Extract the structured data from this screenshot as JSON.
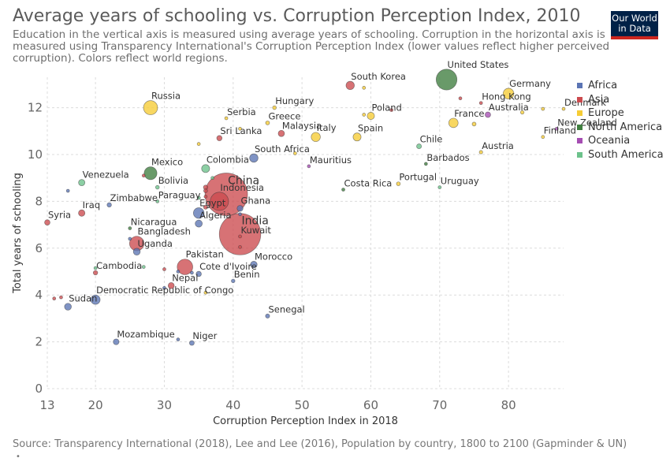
{
  "header": {
    "title": "Average years of schooling vs. Corruption Perception Index, 2010",
    "subtitle": "Education in the vertical axis is measured using average years of schooling. Corruption in the horizontal axis is measured using Transparency International's Corruption Perception Index (lower values reflect higher perceived corruption). Colors reflect world regions."
  },
  "logo": {
    "line1": "Our World",
    "line2": "in Data"
  },
  "footer": {
    "source": "Source: Transparency International (2018), Lee and Lee (2016), Population by country, 1800 to 2100 (Gapminder & UN)",
    "note": "•"
  },
  "colors": {
    "Africa": "#5b74b4",
    "Asia": "#cc4a4e",
    "Europe": "#f6cc35",
    "North America": "#3f7e3f",
    "Oceania": "#a54db2",
    "South America": "#6cc28b"
  },
  "chart_data": {
    "type": "scatter",
    "title": "Average years of schooling vs. Corruption Perception Index, 2010",
    "xlabel": "Corruption Perception Index in 2018",
    "ylabel": "Total years of schooling",
    "xlim": [
      13,
      88
    ],
    "ylim": [
      0,
      13.3
    ],
    "x_ticks": [
      13,
      20,
      30,
      40,
      50,
      60,
      70,
      80
    ],
    "y_ticks": [
      0,
      2,
      4,
      6,
      8,
      10,
      12
    ],
    "grid": true,
    "legend_position": "right",
    "legend": [
      "Africa",
      "Asia",
      "Europe",
      "North America",
      "Oceania",
      "South America"
    ],
    "points": [
      {
        "name": "South Korea",
        "region": "Asia",
        "x": 57,
        "y": 12.95,
        "pop": 50
      },
      {
        "name": "United States",
        "region": "North America",
        "x": 71,
        "y": 13.2,
        "pop": 310
      },
      {
        "name": "Germany",
        "region": "Europe",
        "x": 80,
        "y": 12.6,
        "pop": 82
      },
      {
        "name": "Russia",
        "region": "Europe",
        "x": 28,
        "y": 12.0,
        "pop": 143
      },
      {
        "name": "Hungary",
        "region": "Europe",
        "x": 46,
        "y": 12.0,
        "pop": 10
      },
      {
        "name": "Hong Kong",
        "region": "Asia",
        "x": 76,
        "y": 12.2,
        "pop": 7
      },
      {
        "name": "Denmark",
        "region": "Europe",
        "x": 88,
        "y": 11.95,
        "pop": 5.5
      },
      {
        "name": "Poland",
        "region": "Europe",
        "x": 60,
        "y": 11.65,
        "pop": 38
      },
      {
        "name": "Australia",
        "region": "Oceania",
        "x": 77,
        "y": 11.7,
        "pop": 22
      },
      {
        "name": "Serbia",
        "region": "Europe",
        "x": 39,
        "y": 11.55,
        "pop": 7
      },
      {
        "name": "Greece",
        "region": "Europe",
        "x": 45,
        "y": 11.35,
        "pop": 11
      },
      {
        "name": "France",
        "region": "Europe",
        "x": 72,
        "y": 11.35,
        "pop": 63
      },
      {
        "name": "Sri Lanka",
        "region": "Asia",
        "x": 38,
        "y": 10.7,
        "pop": 20
      },
      {
        "name": "Malaysia",
        "region": "Asia",
        "x": 47,
        "y": 10.9,
        "pop": 28
      },
      {
        "name": "Italy",
        "region": "Europe",
        "x": 52,
        "y": 10.75,
        "pop": 60
      },
      {
        "name": "Spain",
        "region": "Europe",
        "x": 58,
        "y": 10.75,
        "pop": 46
      },
      {
        "name": "New Zealand",
        "region": "Oceania",
        "x": 87,
        "y": 11.1,
        "pop": 4.4
      },
      {
        "name": "Finland",
        "region": "Europe",
        "x": 85,
        "y": 10.75,
        "pop": 5.4
      },
      {
        "name": "Chile",
        "region": "South America",
        "x": 67,
        "y": 10.35,
        "pop": 17
      },
      {
        "name": "Austria",
        "region": "Europe",
        "x": 76,
        "y": 10.1,
        "pop": 8.4
      },
      {
        "name": "South Africa",
        "region": "Africa",
        "x": 43,
        "y": 9.85,
        "pop": 51
      },
      {
        "name": "Barbados",
        "region": "North America",
        "x": 68,
        "y": 9.6,
        "pop": 0.3
      },
      {
        "name": "Mauritius",
        "region": "Oceania",
        "x": 51,
        "y": 9.5,
        "pop": 1.3
      },
      {
        "name": "Colombia",
        "region": "South America",
        "x": 36,
        "y": 9.4,
        "pop": 46
      },
      {
        "name": "Mexico",
        "region": "North America",
        "x": 28,
        "y": 9.2,
        "pop": 117
      },
      {
        "name": "Venezuela",
        "region": "South America",
        "x": 18,
        "y": 8.8,
        "pop": 29
      },
      {
        "name": "Bolivia",
        "region": "South America",
        "x": 29,
        "y": 8.6,
        "pop": 10
      },
      {
        "name": "China",
        "region": "Asia",
        "x": 39,
        "y": 8.3,
        "pop": 1340
      },
      {
        "name": "Portugal",
        "region": "Europe",
        "x": 64,
        "y": 8.75,
        "pop": 10.6
      },
      {
        "name": "Costa Rica",
        "region": "North America",
        "x": 56,
        "y": 8.5,
        "pop": 4.6
      },
      {
        "name": "Uruguay",
        "region": "South America",
        "x": 70,
        "y": 8.6,
        "pop": 3.4
      },
      {
        "name": "Indonesia",
        "region": "Asia",
        "x": 38,
        "y": 8.0,
        "pop": 240
      },
      {
        "name": "Paraguay",
        "region": "South America",
        "x": 29,
        "y": 8.0,
        "pop": 6.4
      },
      {
        "name": "Zimbabwe",
        "region": "Africa",
        "x": 22,
        "y": 7.85,
        "pop": 14
      },
      {
        "name": "Egypt",
        "region": "Africa",
        "x": 35,
        "y": 7.5,
        "pop": 82
      },
      {
        "name": "Ghana",
        "region": "Africa",
        "x": 41,
        "y": 7.7,
        "pop": 25
      },
      {
        "name": "Iraq",
        "region": "Asia",
        "x": 18,
        "y": 7.5,
        "pop": 30
      },
      {
        "name": "India",
        "region": "Asia",
        "x": 41,
        "y": 6.6,
        "pop": 1230
      },
      {
        "name": "Syria",
        "region": "Asia",
        "x": 13,
        "y": 7.1,
        "pop": 21
      },
      {
        "name": "Algeria",
        "region": "Africa",
        "x": 35,
        "y": 7.05,
        "pop": 36
      },
      {
        "name": "Nicaragua",
        "region": "North America",
        "x": 25,
        "y": 6.85,
        "pop": 5.8
      },
      {
        "name": "Bangladesh",
        "region": "Asia",
        "x": 26,
        "y": 6.2,
        "pop": 150
      },
      {
        "name": "Uganda",
        "region": "Africa",
        "x": 26,
        "y": 5.85,
        "pop": 34
      },
      {
        "name": "Kuwait",
        "region": "Asia",
        "x": 41,
        "y": 6.5,
        "pop": 3
      },
      {
        "name": "Pakistan",
        "region": "Asia",
        "x": 33,
        "y": 5.2,
        "pop": 174
      },
      {
        "name": "Morocco",
        "region": "Africa",
        "x": 43,
        "y": 5.3,
        "pop": 32
      },
      {
        "name": "Cambodia",
        "region": "Asia",
        "x": 20,
        "y": 4.95,
        "pop": 14
      },
      {
        "name": "Cote d'Ivoire",
        "region": "Africa",
        "x": 35,
        "y": 4.9,
        "pop": 20
      },
      {
        "name": "Benin",
        "region": "Africa",
        "x": 40,
        "y": 4.6,
        "pop": 9.5
      },
      {
        "name": "Nepal",
        "region": "Asia",
        "x": 31,
        "y": 4.4,
        "pop": 27
      },
      {
        "name": "Democratic Republic of Congo",
        "region": "Africa",
        "x": 20,
        "y": 3.8,
        "pop": 62
      },
      {
        "name": "Sudan",
        "region": "Africa",
        "x": 16,
        "y": 3.5,
        "pop": 34
      },
      {
        "name": "Senegal",
        "region": "Africa",
        "x": 45,
        "y": 3.1,
        "pop": 12.5
      },
      {
        "name": "Mozambique",
        "region": "Africa",
        "x": 23,
        "y": 2.0,
        "pop": 24
      },
      {
        "name": "Niger",
        "region": "Africa",
        "x": 34,
        "y": 1.95,
        "pop": 16
      },
      {
        "name": "",
        "region": "Europe",
        "x": 59,
        "y": 12.85,
        "pop": 2
      },
      {
        "name": "",
        "region": "Asia",
        "x": 73,
        "y": 12.4,
        "pop": 2
      },
      {
        "name": "",
        "region": "Asia",
        "x": 63,
        "y": 11.9,
        "pop": 3
      },
      {
        "name": "",
        "region": "Europe",
        "x": 82,
        "y": 11.8,
        "pop": 9
      },
      {
        "name": "",
        "region": "Europe",
        "x": 85,
        "y": 11.95,
        "pop": 4.8
      },
      {
        "name": "",
        "region": "Europe",
        "x": 75,
        "y": 11.3,
        "pop": 11
      },
      {
        "name": "",
        "region": "Europe",
        "x": 41,
        "y": 11.1,
        "pop": 2
      },
      {
        "name": "",
        "region": "Europe",
        "x": 35,
        "y": 10.45,
        "pop": 2
      },
      {
        "name": "",
        "region": "Europe",
        "x": 49,
        "y": 10.05,
        "pop": 1.4
      },
      {
        "name": "",
        "region": "Europe",
        "x": 59,
        "y": 11.7,
        "pop": 1.3
      },
      {
        "name": "",
        "region": "Asia",
        "x": 36,
        "y": 8.6,
        "pop": 14
      },
      {
        "name": "",
        "region": "Asia",
        "x": 36,
        "y": 8.45,
        "pop": 11
      },
      {
        "name": "",
        "region": "South America",
        "x": 35,
        "y": 8.15,
        "pop": 8
      },
      {
        "name": "",
        "region": "South America",
        "x": 37,
        "y": 9.0,
        "pop": 2
      },
      {
        "name": "",
        "region": "Asia",
        "x": 27,
        "y": 9.1,
        "pop": 2
      },
      {
        "name": "",
        "region": "Africa",
        "x": 16,
        "y": 8.45,
        "pop": 1
      },
      {
        "name": "",
        "region": "Asia",
        "x": 36,
        "y": 7.75,
        "pop": 12
      },
      {
        "name": "",
        "region": "Asia",
        "x": 36,
        "y": 8.2,
        "pop": 6
      },
      {
        "name": "",
        "region": "Africa",
        "x": 41,
        "y": 7.45,
        "pop": 3
      },
      {
        "name": "",
        "region": "Africa",
        "x": 25,
        "y": 6.4,
        "pop": 1.5
      },
      {
        "name": "",
        "region": "Asia",
        "x": 30,
        "y": 5.1,
        "pop": 6
      },
      {
        "name": "",
        "region": "Africa",
        "x": 34,
        "y": 4.95,
        "pop": 4
      },
      {
        "name": "",
        "region": "South America",
        "x": 27,
        "y": 5.2,
        "pop": 0.8
      },
      {
        "name": "",
        "region": "Africa",
        "x": 32,
        "y": 5.0,
        "pop": 1.5
      },
      {
        "name": "",
        "region": "Asia",
        "x": 14,
        "y": 3.85,
        "pop": 2
      },
      {
        "name": "",
        "region": "Asia",
        "x": 15,
        "y": 3.9,
        "pop": 1.5
      },
      {
        "name": "",
        "region": "Africa",
        "x": 30,
        "y": 4.3,
        "pop": 1.2
      },
      {
        "name": "",
        "region": "Africa",
        "x": 32,
        "y": 2.1,
        "pop": 1.2
      },
      {
        "name": "",
        "region": "Asia",
        "x": 41,
        "y": 6.05,
        "pop": 2
      },
      {
        "name": "",
        "region": "South America",
        "x": 20,
        "y": 5.15,
        "pop": 0.7
      },
      {
        "name": "",
        "region": "Europe",
        "x": 36,
        "y": 4.1,
        "pop": 0.5
      }
    ]
  }
}
